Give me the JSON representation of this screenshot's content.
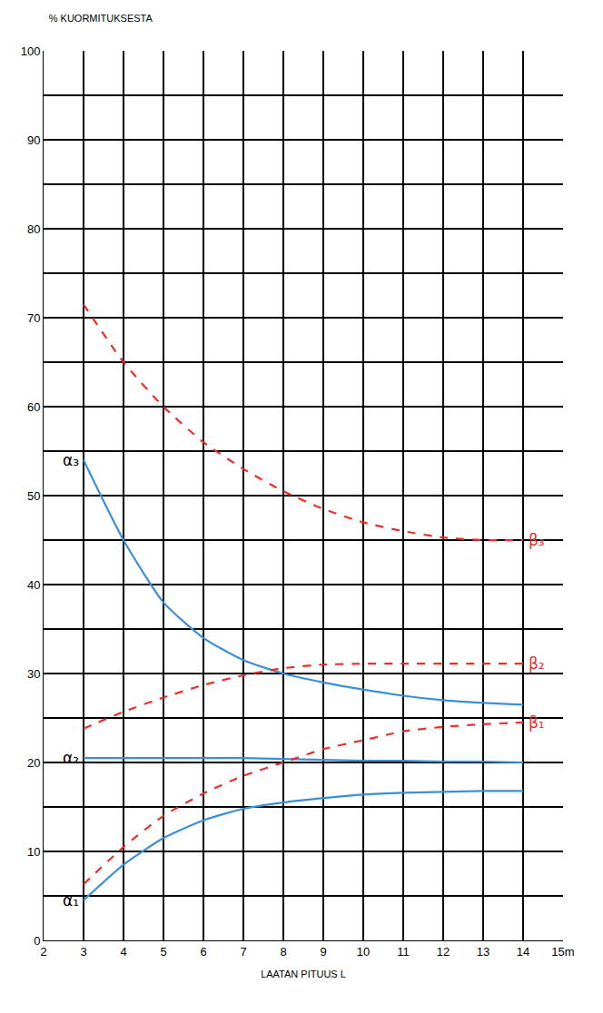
{
  "chart_data": {
    "type": "line",
    "title": "% KUORMITUKSESTA",
    "x_label": "LAATAN PITUUS L",
    "x": [
      3,
      4,
      5,
      6,
      7,
      8,
      9,
      10,
      11,
      12,
      13,
      14
    ],
    "series": [
      {
        "name": "α₁",
        "color": "#3b8fd6",
        "line_style": "solid",
        "values": [
          4.5,
          8.5,
          11.5,
          13.5,
          14.8,
          15.5,
          16,
          16.4,
          16.6,
          16.7,
          16.8,
          16.8
        ]
      },
      {
        "name": "α₂",
        "color": "#3b8fd6",
        "line_style": "solid",
        "values": [
          20.5,
          20.5,
          20.5,
          20.5,
          20.5,
          20.4,
          20.3,
          20.2,
          20.2,
          20.1,
          20.1,
          20.0
        ]
      },
      {
        "name": "α₃",
        "color": "#3b8fd6",
        "line_style": "solid",
        "values": [
          54,
          45,
          38,
          34,
          31.5,
          30,
          29,
          28.2,
          27.5,
          27,
          26.7,
          26.5
        ]
      },
      {
        "name": "β₁",
        "color": "#e8302a",
        "line_style": "dashed",
        "values": [
          6.3,
          10.5,
          14,
          16.5,
          18.5,
          20,
          21.5,
          22.5,
          23.5,
          24,
          24.3,
          24.5
        ]
      },
      {
        "name": "β₂",
        "color": "#e8302a",
        "line_style": "dashed",
        "values": [
          23.8,
          25.7,
          27.3,
          28.7,
          29.8,
          30.6,
          31,
          31.1,
          31.1,
          31.1,
          31.1,
          31.1
        ]
      },
      {
        "name": "β₃",
        "color": "#e8302a",
        "line_style": "dashed",
        "values": [
          71.5,
          65,
          60,
          56,
          53,
          50.5,
          48.5,
          47,
          46,
          45.3,
          45,
          45
        ]
      }
    ],
    "xlim": [
      2,
      15
    ],
    "xticks": [
      2,
      3,
      4,
      5,
      6,
      7,
      8,
      9,
      10,
      11,
      12,
      13,
      14,
      {
        "value": 15,
        "label": "15m"
      }
    ],
    "ylim": [
      0,
      100
    ],
    "yticks": [
      0,
      10,
      20,
      30,
      40,
      50,
      60,
      70,
      80,
      90,
      100
    ],
    "grid": true
  }
}
